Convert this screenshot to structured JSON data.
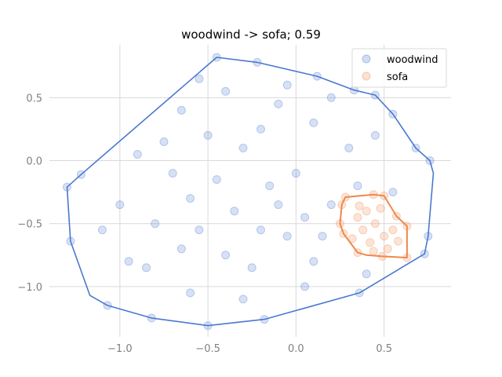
{
  "chart_data": {
    "type": "scatter",
    "title": "woodwind -> sofa; 0.59",
    "xlabel": "",
    "ylabel": "",
    "xlim": [
      -1.4,
      0.88
    ],
    "ylim": [
      -1.4,
      0.92
    ],
    "xticks": [
      -1.0,
      -0.5,
      0.0,
      0.5
    ],
    "yticks": [
      -1.0,
      -0.5,
      0.0,
      0.5
    ],
    "xtick_labels": [
      "−1.0",
      "−0.5",
      "0.0",
      "0.5"
    ],
    "ytick_labels": [
      "−1.0",
      "−0.5",
      "0.0",
      "0.5"
    ],
    "grid": true,
    "legend_position": "top-right",
    "series": [
      {
        "name": "woodwind",
        "color": "#4a78d0",
        "hull": [
          [
            -0.45,
            0.82
          ],
          [
            -0.22,
            0.78
          ],
          [
            0.12,
            0.67
          ],
          [
            0.33,
            0.56
          ],
          [
            0.45,
            0.52
          ],
          [
            0.55,
            0.37
          ],
          [
            0.68,
            0.1
          ],
          [
            0.76,
            0.0
          ],
          [
            0.78,
            -0.1
          ],
          [
            0.75,
            -0.6
          ],
          [
            0.73,
            -0.74
          ],
          [
            0.36,
            -1.05
          ],
          [
            -0.18,
            -1.26
          ],
          [
            -0.5,
            -1.31
          ],
          [
            -0.82,
            -1.25
          ],
          [
            -1.07,
            -1.15
          ],
          [
            -1.17,
            -1.07
          ],
          [
            -1.28,
            -0.64
          ],
          [
            -1.3,
            -0.21
          ],
          [
            -1.22,
            -0.11
          ]
        ],
        "points": [
          [
            -0.45,
            0.82
          ],
          [
            -0.22,
            0.78
          ],
          [
            0.12,
            0.67
          ],
          [
            0.33,
            0.56
          ],
          [
            0.45,
            0.52
          ],
          [
            0.55,
            0.37
          ],
          [
            0.68,
            0.1
          ],
          [
            0.76,
            0.0
          ],
          [
            0.75,
            -0.6
          ],
          [
            0.73,
            -0.74
          ],
          [
            0.36,
            -1.05
          ],
          [
            -0.18,
            -1.26
          ],
          [
            -0.5,
            -1.31
          ],
          [
            -0.82,
            -1.25
          ],
          [
            -1.07,
            -1.15
          ],
          [
            -1.28,
            -0.64
          ],
          [
            -1.3,
            -0.21
          ],
          [
            -1.22,
            -0.11
          ],
          [
            -0.35,
            -0.4
          ],
          [
            -0.2,
            -0.55
          ],
          [
            -0.05,
            -0.6
          ],
          [
            0.05,
            -0.45
          ],
          [
            -0.4,
            -0.75
          ],
          [
            -0.6,
            -0.3
          ],
          [
            -0.15,
            -0.2
          ],
          [
            0.0,
            -0.1
          ],
          [
            -0.3,
            0.1
          ],
          [
            -0.5,
            0.2
          ],
          [
            -0.7,
            -0.1
          ],
          [
            -0.8,
            -0.5
          ],
          [
            -0.25,
            -0.85
          ],
          [
            0.1,
            -0.8
          ],
          [
            0.2,
            -0.35
          ],
          [
            0.3,
            0.1
          ],
          [
            0.1,
            0.3
          ],
          [
            -0.1,
            0.45
          ],
          [
            -0.4,
            0.55
          ],
          [
            -0.65,
            0.4
          ],
          [
            -0.9,
            0.05
          ],
          [
            -1.0,
            -0.35
          ],
          [
            -0.95,
            -0.8
          ],
          [
            -0.6,
            -1.05
          ],
          [
            -0.3,
            -1.1
          ],
          [
            0.05,
            -1.0
          ],
          [
            0.4,
            -0.9
          ],
          [
            0.55,
            -0.25
          ],
          [
            0.45,
            0.2
          ],
          [
            0.2,
            0.5
          ],
          [
            -0.05,
            0.6
          ],
          [
            -0.55,
            0.65
          ],
          [
            -0.75,
            0.15
          ],
          [
            -1.1,
            -0.55
          ],
          [
            -0.45,
            -0.15
          ],
          [
            -0.1,
            -0.35
          ],
          [
            0.15,
            -0.6
          ],
          [
            -0.55,
            -0.55
          ],
          [
            -0.85,
            -0.85
          ],
          [
            0.35,
            -0.2
          ],
          [
            -0.2,
            0.25
          ],
          [
            -0.65,
            -0.7
          ]
        ]
      },
      {
        "name": "sofa",
        "color": "#f0884a",
        "hull": [
          [
            0.28,
            -0.29
          ],
          [
            0.44,
            -0.27
          ],
          [
            0.5,
            -0.28
          ],
          [
            0.57,
            -0.44
          ],
          [
            0.63,
            -0.52
          ],
          [
            0.63,
            -0.77
          ],
          [
            0.49,
            -0.76
          ],
          [
            0.4,
            -0.75
          ],
          [
            0.35,
            -0.73
          ],
          [
            0.27,
            -0.58
          ],
          [
            0.25,
            -0.5
          ],
          [
            0.26,
            -0.35
          ]
        ],
        "points": [
          [
            0.28,
            -0.29
          ],
          [
            0.44,
            -0.27
          ],
          [
            0.5,
            -0.28
          ],
          [
            0.57,
            -0.44
          ],
          [
            0.63,
            -0.52
          ],
          [
            0.63,
            -0.77
          ],
          [
            0.49,
            -0.76
          ],
          [
            0.35,
            -0.73
          ],
          [
            0.27,
            -0.58
          ],
          [
            0.25,
            -0.5
          ],
          [
            0.26,
            -0.35
          ],
          [
            0.4,
            -0.4
          ],
          [
            0.45,
            -0.5
          ],
          [
            0.5,
            -0.6
          ],
          [
            0.35,
            -0.45
          ],
          [
            0.55,
            -0.55
          ],
          [
            0.42,
            -0.65
          ],
          [
            0.38,
            -0.55
          ],
          [
            0.48,
            -0.38
          ],
          [
            0.52,
            -0.7
          ],
          [
            0.32,
            -0.62
          ],
          [
            0.58,
            -0.64
          ],
          [
            0.44,
            -0.72
          ],
          [
            0.36,
            -0.36
          ]
        ]
      }
    ]
  }
}
